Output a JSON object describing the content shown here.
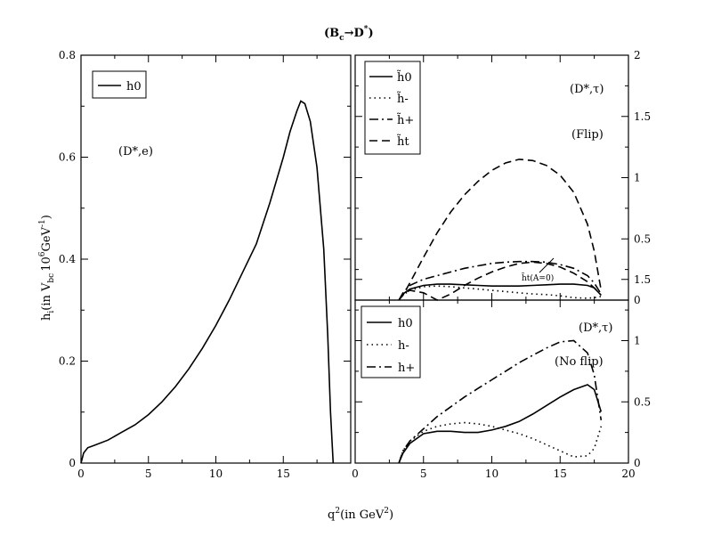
{
  "figure": {
    "title": "(B",
    "title_sub": "c",
    "title_arrow": "→D",
    "title_sup": "*",
    "title_close": ")",
    "xlabel": "q",
    "xlabel_sup": "2",
    "xlabel_rest": "(in GeV",
    "xlabel_sup2": "2",
    "xlabel_close": ")",
    "ylabel_main": "h",
    "ylabel_sub_i": "i",
    "ylabel_in": "(in V",
    "ylabel_sub_bc": "bc",
    "ylabel_10": "10",
    "ylabel_sup6": "6",
    "ylabel_gev": "GeV",
    "ylabel_supm1": "-1",
    "ylabel_close": ")"
  },
  "chart_data": [
    {
      "type": "line",
      "panel": "left",
      "annotation": "(D*,e)",
      "xlim": [
        0,
        20
      ],
      "ylim": [
        0,
        0.8
      ],
      "x_ticks": [
        "0",
        "5",
        "10",
        "15"
      ],
      "y_ticks": [
        "0",
        "0.2",
        "0.4",
        "0.6",
        "0.8"
      ],
      "legend": "top-left",
      "series": [
        {
          "name": "h0",
          "style": "solid",
          "x": [
            0,
            0.2,
            0.5,
            1,
            2,
            3,
            4,
            5,
            6,
            7,
            8,
            9,
            10,
            11,
            12,
            13,
            14,
            15,
            15.5,
            16,
            16.3,
            16.6,
            17,
            17.5,
            18,
            18.3,
            18.5,
            18.7
          ],
          "y": [
            0.0,
            0.02,
            0.03,
            0.035,
            0.045,
            0.06,
            0.075,
            0.095,
            0.12,
            0.15,
            0.185,
            0.225,
            0.27,
            0.32,
            0.375,
            0.43,
            0.51,
            0.6,
            0.65,
            0.69,
            0.71,
            0.705,
            0.67,
            0.58,
            0.42,
            0.25,
            0.1,
            0.0
          ]
        }
      ]
    },
    {
      "type": "line",
      "panel": "upper-right",
      "annotation": "(D*,τ)",
      "annotation2": "(Flip)",
      "inline_label": "h̃t(A=0)",
      "xlim": [
        0,
        20
      ],
      "ylim": [
        0,
        2
      ],
      "y_ticks": [
        "0",
        "0.5",
        "1",
        "1.5",
        "2"
      ],
      "legend": "top-left",
      "series": [
        {
          "name": "h̃0",
          "style": "solid",
          "x": [
            3.2,
            3.5,
            4,
            5,
            6,
            7,
            8,
            9,
            10,
            11,
            12,
            13,
            14,
            15,
            16,
            17,
            17.5,
            18
          ],
          "y": [
            0.0,
            0.05,
            0.09,
            0.12,
            0.13,
            0.13,
            0.125,
            0.12,
            0.115,
            0.115,
            0.115,
            0.12,
            0.125,
            0.13,
            0.13,
            0.12,
            0.1,
            0.04
          ]
        },
        {
          "name": "h̃-",
          "style": "dotted",
          "x": [
            3.2,
            3.5,
            4,
            5,
            6,
            7,
            8,
            9,
            10,
            11,
            12,
            13,
            14,
            15,
            16,
            17,
            17.5,
            18
          ],
          "y": [
            0.0,
            0.04,
            0.08,
            0.11,
            0.115,
            0.11,
            0.1,
            0.09,
            0.08,
            0.07,
            0.06,
            0.05,
            0.045,
            0.035,
            0.02,
            0.015,
            0.02,
            0.03
          ]
        },
        {
          "name": "h̃+",
          "style": "dashdot",
          "x": [
            3.2,
            3.5,
            4,
            5,
            6,
            7,
            8,
            9,
            10,
            11,
            12,
            13,
            14,
            15,
            16,
            17,
            17.5,
            18
          ],
          "y": [
            0.0,
            0.06,
            0.12,
            0.17,
            0.2,
            0.23,
            0.26,
            0.28,
            0.3,
            0.31,
            0.315,
            0.315,
            0.31,
            0.29,
            0.26,
            0.2,
            0.14,
            0.05
          ]
        },
        {
          "name": "h̃t",
          "style": "dashed",
          "x": [
            3.2,
            3.5,
            4,
            5,
            6,
            7,
            8,
            9,
            10,
            11,
            12,
            13,
            14,
            15,
            16,
            17,
            17.5,
            18
          ],
          "y": [
            0.0,
            0.04,
            0.14,
            0.35,
            0.55,
            0.72,
            0.86,
            0.97,
            1.06,
            1.12,
            1.15,
            1.14,
            1.1,
            1.02,
            0.88,
            0.62,
            0.4,
            0.08
          ]
        },
        {
          "name": "h̃t(A=0)",
          "style": "dashed",
          "x": [
            3.2,
            3.5,
            4,
            5,
            6,
            7,
            8,
            9,
            10,
            11,
            12,
            13,
            14,
            15,
            16,
            17,
            17.5,
            18
          ],
          "y": [
            0.0,
            0.05,
            0.08,
            0.06,
            0.0,
            0.05,
            0.12,
            0.18,
            0.23,
            0.27,
            0.3,
            0.31,
            0.3,
            0.27,
            0.22,
            0.15,
            0.1,
            0.04
          ]
        }
      ]
    },
    {
      "type": "line",
      "panel": "lower-right",
      "annotation": "(D*,τ)",
      "annotation2": "(No flip)",
      "xlim": [
        0,
        20
      ],
      "ylim": [
        0,
        2
      ],
      "x_ticks": [
        "0",
        "5",
        "10",
        "15",
        "20"
      ],
      "y_ticks": [
        "0",
        "0.5",
        "1",
        "1.5"
      ],
      "legend": "top-left",
      "series": [
        {
          "name": "h0",
          "style": "solid",
          "x": [
            3.2,
            3.5,
            4,
            5,
            6,
            7,
            8,
            9,
            10,
            11,
            12,
            13,
            14,
            15,
            16,
            17,
            17.5,
            18
          ],
          "y": [
            0.0,
            0.08,
            0.16,
            0.24,
            0.26,
            0.26,
            0.25,
            0.25,
            0.27,
            0.3,
            0.34,
            0.4,
            0.47,
            0.54,
            0.6,
            0.64,
            0.6,
            0.42
          ]
        },
        {
          "name": "h-",
          "style": "dotted",
          "x": [
            3.2,
            3.5,
            4,
            5,
            6,
            7,
            8,
            9,
            10,
            11,
            12,
            13,
            14,
            15,
            16,
            17,
            17.5,
            18
          ],
          "y": [
            0.0,
            0.1,
            0.18,
            0.26,
            0.3,
            0.32,
            0.33,
            0.32,
            0.3,
            0.27,
            0.24,
            0.2,
            0.15,
            0.1,
            0.05,
            0.06,
            0.12,
            0.3
          ]
        },
        {
          "name": "h+",
          "style": "dashdot",
          "x": [
            3.2,
            3.5,
            4,
            5,
            6,
            7,
            8,
            9,
            10,
            11,
            12,
            13,
            14,
            15,
            16,
            17,
            17.5,
            18
          ],
          "y": [
            0.0,
            0.1,
            0.18,
            0.28,
            0.38,
            0.46,
            0.54,
            0.61,
            0.68,
            0.75,
            0.82,
            0.88,
            0.94,
            0.99,
            1.0,
            0.9,
            0.72,
            0.35
          ]
        }
      ]
    }
  ]
}
